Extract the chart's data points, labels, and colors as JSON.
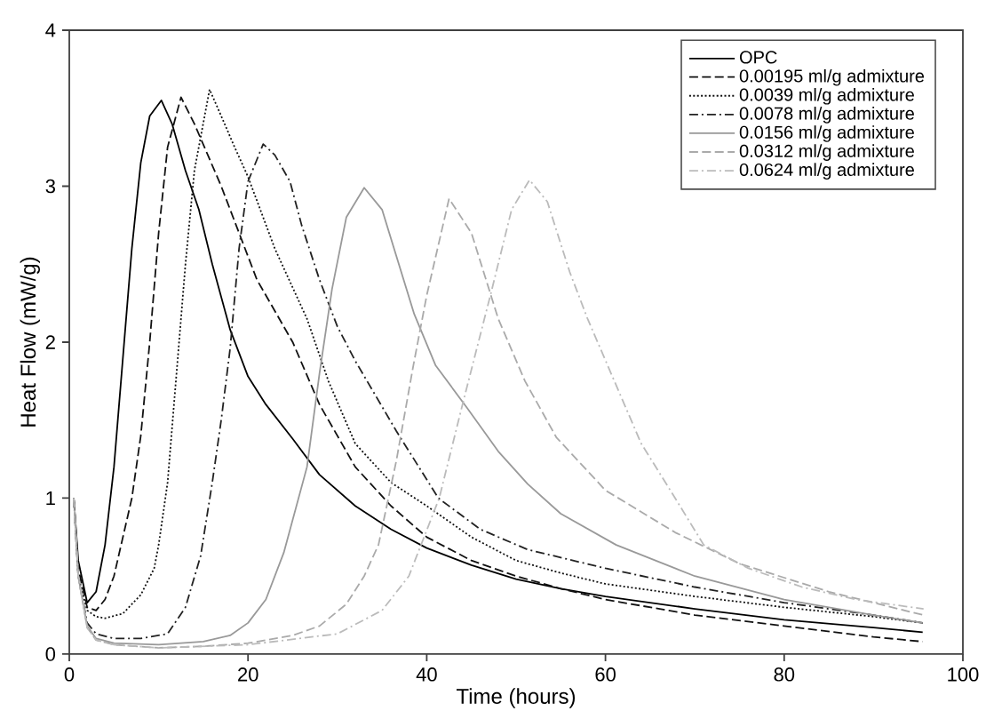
{
  "chart_data": {
    "type": "line",
    "xlabel": "Time (hours)",
    "ylabel": "Heat Flow (mW/g)",
    "xlim": [
      0,
      100
    ],
    "xticks": [
      0,
      20,
      40,
      60,
      80,
      100
    ],
    "ylim": [
      0,
      4
    ],
    "yticks": [
      0,
      1,
      2,
      3,
      4
    ],
    "legend": "top right",
    "grid": false,
    "marker": "none",
    "series": [
      {
        "name": "OPC",
        "color": "#000000",
        "line_style": "solid",
        "x": [
          0.5,
          1,
          2,
          3,
          4,
          5,
          6,
          7,
          8,
          9,
          10.3,
          11.5,
          13,
          14.5,
          16,
          18,
          20,
          22,
          25,
          28,
          32,
          36,
          40,
          45,
          50,
          55,
          60,
          70,
          80,
          90,
          95.5
        ],
        "values": [
          1.0,
          0.6,
          0.33,
          0.4,
          0.7,
          1.2,
          1.9,
          2.6,
          3.15,
          3.45,
          3.55,
          3.4,
          3.1,
          2.85,
          2.5,
          2.08,
          1.78,
          1.6,
          1.38,
          1.15,
          0.95,
          0.8,
          0.68,
          0.57,
          0.48,
          0.42,
          0.37,
          0.29,
          0.22,
          0.17,
          0.14
        ]
      },
      {
        "name": "0.00195 ml/g admixture",
        "color": "#111111",
        "line_style": "dashed",
        "x": [
          0.5,
          1,
          2,
          3,
          4,
          5,
          6,
          7,
          8,
          9,
          10,
          11,
          12.5,
          14,
          15.5,
          17,
          19,
          21,
          23,
          25,
          28,
          32,
          36,
          40,
          45,
          50,
          55,
          60,
          70,
          80,
          90,
          95.5
        ],
        "values": [
          1.0,
          0.55,
          0.3,
          0.28,
          0.35,
          0.5,
          0.75,
          1.0,
          1.4,
          2.0,
          2.7,
          3.25,
          3.57,
          3.4,
          3.2,
          3.0,
          2.7,
          2.4,
          2.2,
          2.0,
          1.6,
          1.2,
          0.95,
          0.75,
          0.6,
          0.5,
          0.42,
          0.35,
          0.25,
          0.18,
          0.11,
          0.08
        ]
      },
      {
        "name": "0.0039 ml/g admixture",
        "color": "#111111",
        "line_style": "dotted",
        "x": [
          0.5,
          1,
          2,
          3,
          4,
          6,
          8,
          9.5,
          10,
          11,
          12,
          13,
          14,
          15.7,
          17,
          18.5,
          20,
          23,
          26.6,
          29,
          32,
          36,
          40,
          45,
          50,
          55,
          60,
          70,
          80,
          90,
          95.5
        ],
        "values": [
          1.0,
          0.5,
          0.28,
          0.24,
          0.23,
          0.26,
          0.38,
          0.55,
          0.7,
          1.1,
          1.8,
          2.5,
          3.1,
          3.62,
          3.45,
          3.25,
          3.06,
          2.6,
          2.15,
          1.75,
          1.35,
          1.1,
          0.95,
          0.75,
          0.6,
          0.52,
          0.45,
          0.37,
          0.3,
          0.24,
          0.2
        ]
      },
      {
        "name": "0.0078 ml/g admixture",
        "color": "#222222",
        "line_style": "dashdot",
        "x": [
          0.5,
          1,
          2,
          3,
          5,
          8,
          11,
          13,
          14.7,
          16,
          17,
          18,
          19,
          20,
          21.7,
          23,
          24.7,
          26,
          28,
          30,
          32,
          36.6,
          41.3,
          46,
          51.3,
          60,
          70,
          80,
          90,
          95.5
        ],
        "values": [
          1.0,
          0.5,
          0.2,
          0.13,
          0.1,
          0.1,
          0.13,
          0.3,
          0.63,
          1.1,
          1.5,
          1.96,
          2.6,
          3.03,
          3.27,
          3.2,
          3.03,
          2.75,
          2.4,
          2.1,
          1.88,
          1.43,
          1.0,
          0.8,
          0.67,
          0.55,
          0.43,
          0.33,
          0.25,
          0.2
        ]
      },
      {
        "name": "0.0156 ml/g admixture",
        "color": "#999999",
        "line_style": "solid",
        "x": [
          0.5,
          1,
          2,
          3,
          5,
          10,
          15,
          18,
          20,
          22,
          24,
          26.6,
          28,
          29.4,
          31,
          33,
          35,
          38.6,
          41,
          44.5,
          48,
          51.3,
          55,
          61.2,
          70,
          80,
          90,
          95.5
        ],
        "values": [
          1.0,
          0.5,
          0.18,
          0.1,
          0.07,
          0.06,
          0.08,
          0.12,
          0.2,
          0.35,
          0.65,
          1.2,
          1.8,
          2.34,
          2.8,
          2.99,
          2.85,
          2.18,
          1.85,
          1.58,
          1.3,
          1.09,
          0.9,
          0.7,
          0.5,
          0.35,
          0.25,
          0.2
        ]
      },
      {
        "name": "0.0312 ml/g admixture",
        "color": "#aaaaaa",
        "line_style": "dashed",
        "x": [
          0.5,
          1,
          2,
          3,
          5,
          10,
          15,
          20,
          25,
          28,
          31,
          33,
          34.6,
          36.6,
          38.5,
          40,
          42.5,
          45,
          48,
          51,
          54.5,
          60,
          67.8,
          75,
          85,
          95.6
        ],
        "values": [
          1.0,
          0.5,
          0.17,
          0.09,
          0.06,
          0.04,
          0.05,
          0.07,
          0.12,
          0.18,
          0.32,
          0.5,
          0.7,
          1.24,
          1.85,
          2.3,
          2.92,
          2.7,
          2.15,
          1.75,
          1.39,
          1.05,
          0.78,
          0.58,
          0.4,
          0.25
        ]
      },
      {
        "name": "0.0624 ml/g admixture",
        "color": "#bbbbbb",
        "line_style": "dashdot",
        "x": [
          0.5,
          1,
          2,
          3,
          5,
          10,
          20,
          30,
          35,
          38,
          41.4,
          44,
          47.3,
          49.5,
          51.5,
          53.5,
          56,
          58,
          61,
          64,
          67.8,
          71,
          76,
          82,
          88,
          95.6
        ],
        "values": [
          1.0,
          0.5,
          0.17,
          0.09,
          0.06,
          0.04,
          0.06,
          0.13,
          0.28,
          0.5,
          1.0,
          1.6,
          2.34,
          2.85,
          3.04,
          2.9,
          2.45,
          2.15,
          1.75,
          1.35,
          1.0,
          0.7,
          0.55,
          0.43,
          0.35,
          0.29
        ]
      }
    ]
  }
}
